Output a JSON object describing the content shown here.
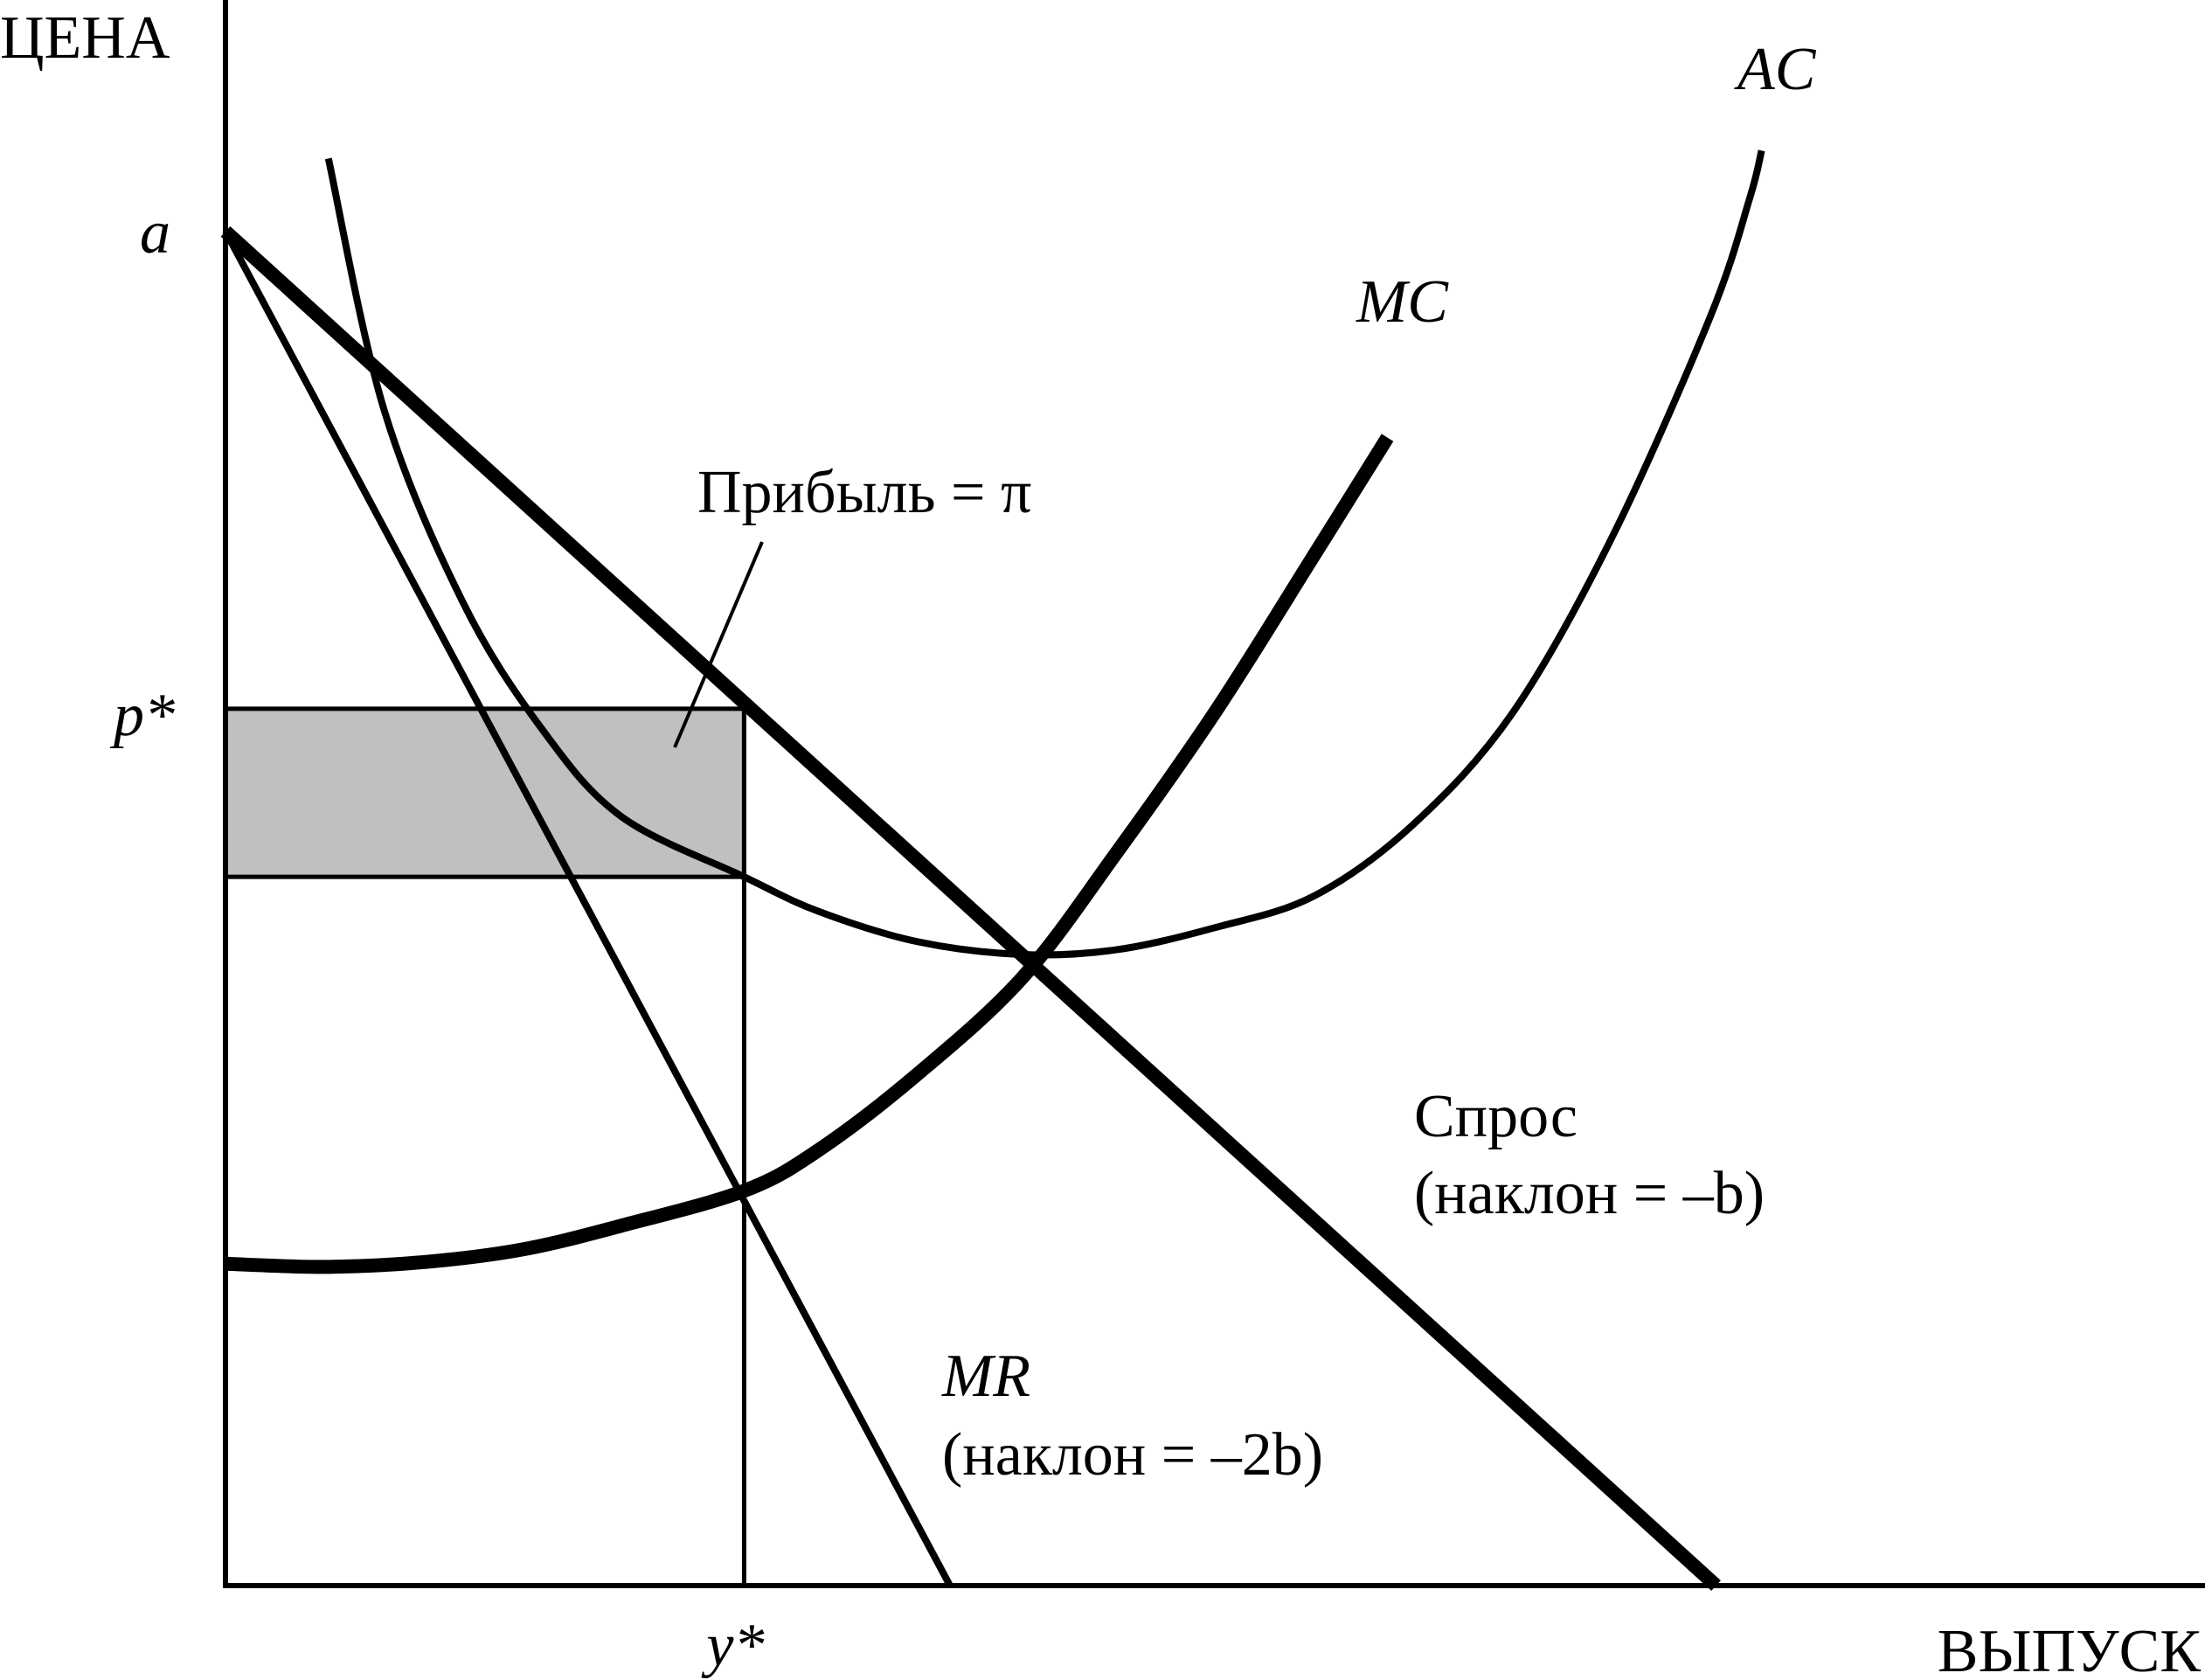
{
  "chart_data": {
    "type": "line",
    "title": "",
    "ylabel": "ЦЕНА",
    "xlabel": "ВЫПУСК",
    "xlim": [
      0,
      100
    ],
    "ylim": [
      0,
      100
    ],
    "grid": false,
    "ticks": {
      "a": {
        "label": "a",
        "y": 85.4
      },
      "p_star": {
        "label": "p*",
        "y": 55.3
      },
      "y_star": {
        "label": "y*",
        "x": 26.2
      }
    },
    "profit_region": {
      "x": [
        0,
        26.2
      ],
      "y": [
        44.7,
        55.3
      ],
      "label": "Прибыль = π",
      "color": "#c0c0c0"
    },
    "series": [
      {
        "name": "Спрос",
        "slope_label": "(наклон = –b)",
        "x": [
          0,
          75.3
        ],
        "y": [
          85.4,
          0
        ]
      },
      {
        "name": "MR",
        "slope_label": "(наклон = –2b)",
        "x": [
          0,
          36.6
        ],
        "y": [
          85.4,
          0
        ]
      },
      {
        "name": "MC",
        "x": [
          0,
          5,
          10,
          15,
          20,
          26.2,
          30,
          35,
          40.3,
          45,
          50,
          55,
          58.7
        ],
        "y": [
          20.3,
          20.1,
          20.4,
          21.2,
          22.7,
          24.9,
          27.5,
          32.3,
          38.4,
          46.2,
          55.1,
          65.0,
          72.4
        ]
      },
      {
        "name": "AC",
        "x": [
          5.2,
          8,
          12,
          16,
          20,
          26.2,
          30,
          35,
          40.3,
          45,
          50,
          55,
          60,
          65,
          70,
          75,
          77,
          77.6
        ],
        "y": [
          90.0,
          74.2,
          62.0,
          54.0,
          48.5,
          44.7,
          42.5,
          40.6,
          39.8,
          40.1,
          41.5,
          43.5,
          48.0,
          55.0,
          66.0,
          80.0,
          87.5,
          90.5
        ]
      }
    ]
  }
}
